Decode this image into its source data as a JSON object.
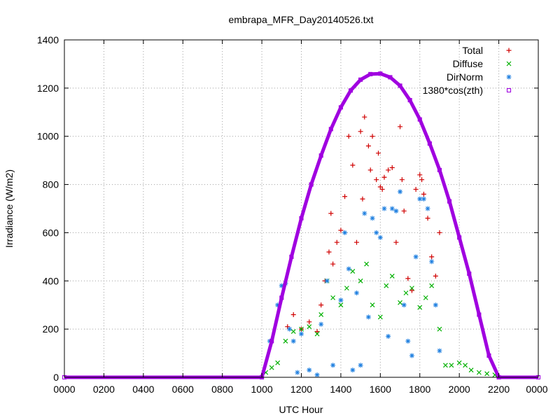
{
  "chart_data": {
    "type": "scatter",
    "title": "embrapa_MFR_Day20140526.txt",
    "xlabel": "UTC Hour",
    "ylabel": "Irradiance (W/m2)",
    "xlim": [
      0,
      24
    ],
    "ylim": [
      0,
      1400
    ],
    "x_ticks": [
      0,
      2,
      4,
      6,
      8,
      10,
      12,
      14,
      16,
      18,
      20,
      22,
      24
    ],
    "x_tick_labels": [
      "0000",
      "0200",
      "0400",
      "0600",
      "0800",
      "1000",
      "1200",
      "1400",
      "1600",
      "1800",
      "2000",
      "2200",
      "0000"
    ],
    "y_ticks": [
      0,
      200,
      400,
      600,
      800,
      1000,
      1200,
      1400
    ],
    "y_tick_labels": [
      "0",
      "200",
      "400",
      "600",
      "800",
      "1000",
      "1200",
      "1400"
    ],
    "grid": true,
    "legend_position": "top-right",
    "colors": {
      "total": "#d00000",
      "diffuse": "#00b000",
      "dirnorm": "#2080e0",
      "cos": "#a000e0"
    },
    "series": [
      {
        "name": "Total",
        "marker": "plus",
        "color": "#d00000",
        "x": [
          11.3,
          11.6,
          12.0,
          12.4,
          12.8,
          13.0,
          13.2,
          13.4,
          13.5,
          13.6,
          13.8,
          14.0,
          14.2,
          14.4,
          14.6,
          14.8,
          15.0,
          15.1,
          15.2,
          15.4,
          15.5,
          15.6,
          15.8,
          15.9,
          16.0,
          16.1,
          16.2,
          16.4,
          16.6,
          16.8,
          17.0,
          17.1,
          17.2,
          17.4,
          17.6,
          17.8,
          18.0,
          18.1,
          18.2,
          18.4,
          18.6,
          18.8,
          19.0
        ],
        "y": [
          210,
          260,
          200,
          230,
          190,
          300,
          400,
          520,
          680,
          470,
          560,
          610,
          750,
          1000,
          880,
          560,
          1020,
          740,
          1080,
          960,
          860,
          1000,
          820,
          930,
          790,
          780,
          830,
          860,
          870,
          560,
          1040,
          820,
          690,
          410,
          360,
          780,
          840,
          820,
          760,
          660,
          500,
          420,
          600
        ]
      },
      {
        "name": "Diffuse",
        "marker": "cross",
        "color": "#00b000",
        "x": [
          10.2,
          10.5,
          10.8,
          11.2,
          11.6,
          12.0,
          12.4,
          12.8,
          13.0,
          13.3,
          13.6,
          14.0,
          14.3,
          14.6,
          15.0,
          15.3,
          15.6,
          16.0,
          16.3,
          16.6,
          17.0,
          17.3,
          17.6,
          18.0,
          18.3,
          18.6,
          19.0,
          19.3,
          19.6,
          20.0,
          20.3,
          20.6,
          21.0,
          21.4,
          21.8
        ],
        "y": [
          20,
          40,
          60,
          150,
          190,
          200,
          210,
          180,
          260,
          400,
          330,
          300,
          370,
          440,
          400,
          470,
          300,
          250,
          380,
          420,
          310,
          350,
          370,
          290,
          330,
          380,
          200,
          50,
          50,
          60,
          50,
          30,
          20,
          15,
          10
        ]
      },
      {
        "name": "DirNorm",
        "marker": "star",
        "color": "#2080e0",
        "x": [
          10.4,
          10.8,
          11.0,
          11.2,
          11.4,
          11.6,
          11.8,
          12.0,
          12.4,
          12.8,
          13.0,
          13.3,
          13.6,
          14.0,
          14.2,
          14.4,
          14.6,
          14.8,
          15.0,
          15.2,
          15.4,
          15.6,
          15.8,
          16.0,
          16.2,
          16.4,
          16.6,
          16.8,
          17.0,
          17.2,
          17.4,
          17.6,
          17.8,
          18.0,
          18.2,
          18.4,
          18.6,
          18.8,
          19.0
        ],
        "y": [
          150,
          300,
          380,
          390,
          200,
          150,
          20,
          180,
          30,
          10,
          220,
          400,
          50,
          320,
          600,
          450,
          30,
          350,
          50,
          680,
          250,
          660,
          600,
          580,
          700,
          170,
          700,
          690,
          770,
          300,
          150,
          90,
          500,
          740,
          740,
          700,
          480,
          300,
          110
        ]
      },
      {
        "name": "1380*cos(zth)",
        "marker": "square",
        "color": "#a000e0",
        "x": [
          0,
          10.0,
          10.5,
          11.0,
          11.5,
          12.0,
          12.5,
          13.0,
          13.5,
          14.0,
          14.5,
          15.0,
          15.5,
          16.0,
          16.5,
          17.0,
          17.5,
          18.0,
          18.5,
          19.0,
          19.5,
          20.0,
          20.5,
          21.0,
          21.5,
          22.0,
          24
        ],
        "y": [
          0,
          0,
          150,
          330,
          500,
          660,
          800,
          920,
          1030,
          1120,
          1190,
          1235,
          1258,
          1260,
          1245,
          1210,
          1150,
          1070,
          970,
          860,
          730,
          580,
          430,
          260,
          90,
          0,
          0
        ]
      }
    ]
  }
}
